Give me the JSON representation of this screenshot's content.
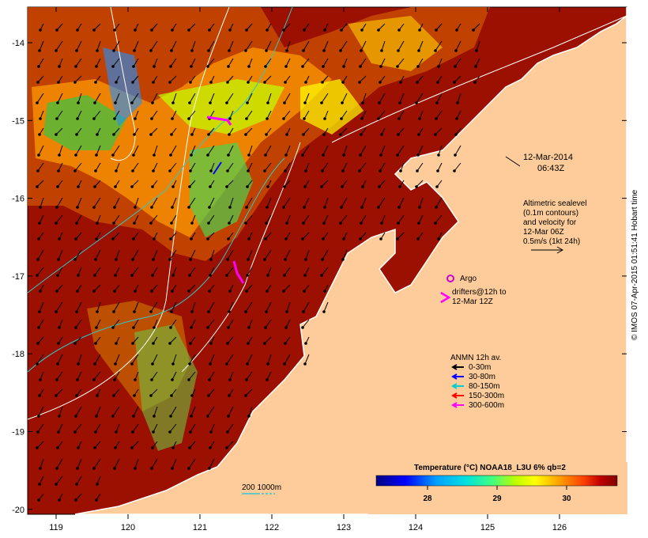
{
  "map": {
    "date": "12-Mar-2014",
    "time": "06:43Z",
    "altimetry_note": [
      "Altimetric sealevel",
      "(0.1m contours)",
      "and velocity for",
      "12-Mar 06Z",
      "0.5m/s (1kt 24h)"
    ],
    "argo_label": "Argo",
    "drifters_note": [
      "drifters@12h to",
      "12-Mar 12Z"
    ],
    "anmn_title": "ANMN 12h av.",
    "anmn_legend": [
      {
        "label": "0-30m",
        "color": "#000000"
      },
      {
        "label": "30-80m",
        "color": "#0000ff"
      },
      {
        "label": "80-150m",
        "color": "#00cccc"
      },
      {
        "label": "150-300m",
        "color": "#ff0000"
      },
      {
        "label": "300-600m",
        "color": "#ff00ff"
      }
    ],
    "colorbar_title": "Temperature (°C) NOAA18_L3U 6% qb=2",
    "colorbar_ticks": [
      "28",
      "29",
      "30"
    ],
    "isobath_label": "200  1000m",
    "credit": "© IMOS 07-Apr-2015 01:51:41 Hobart time",
    "x_ticks": [
      "119",
      "120",
      "121",
      "122",
      "123",
      "124",
      "125",
      "126"
    ],
    "y_ticks": [
      "-14",
      "-15",
      "-16",
      "-17",
      "-18",
      "-19",
      "-20"
    ],
    "colors": {
      "land": "#fdcc9a",
      "sst_warm": "#9b1000",
      "coast": "#ffffff"
    }
  }
}
